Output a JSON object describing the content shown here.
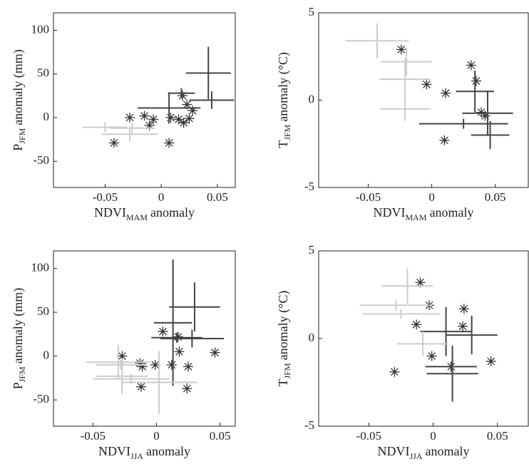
{
  "chart_data": [
    {
      "type": "scatter",
      "xlabel": {
        "main": "NDVI",
        "sub": "MAM",
        "rest": "anomaly"
      },
      "ylabel": {
        "main": "P",
        "sub": "JFM",
        "rest": "anomaly (mm)"
      },
      "xlim": [
        -0.096,
        0.066
      ],
      "ylim": [
        -80,
        120
      ],
      "xticks": [
        -0.05,
        0,
        0.05
      ],
      "yticks": [
        -50,
        0,
        50,
        100
      ],
      "series": [
        {
          "marker": "asterisk",
          "color": "#333333",
          "x": [
            -0.028,
            -0.015,
            -0.0105,
            -0.007,
            -0.042,
            0.007,
            0.0085,
            0.0155,
            0.02,
            0.025,
            0.028,
            0.019,
            0.023
          ],
          "y": [
            0,
            2,
            -9,
            -2,
            -29,
            -29,
            0,
            -2,
            -6,
            -1,
            8,
            25,
            15
          ]
        },
        {
          "marker": "errorbar",
          "color": "#444444",
          "x": [
            0.042,
            0.045,
            0.007,
            0.018
          ],
          "y": [
            51,
            20,
            11,
            28
          ],
          "xerr": [
            0.02,
            0.02,
            0.028,
            0.012
          ],
          "yerr": [
            30,
            10,
            18,
            0
          ]
        },
        {
          "marker": "errorbar",
          "color": "#cccccc",
          "x": [
            -0.05,
            -0.028,
            -0.026
          ],
          "y": [
            -11,
            -19,
            -12
          ],
          "xerr": [
            0.02,
            0.025,
            0.02
          ],
          "yerr": [
            0,
            8,
            5
          ]
        }
      ]
    },
    {
      "type": "scatter",
      "xlabel": {
        "main": "NDVI",
        "sub": "MAM",
        "rest": "anomaly"
      },
      "ylabel": {
        "main": "T",
        "sub": "JFM",
        "rest": "anomaly (°C)"
      },
      "xlim": [
        -0.089,
        0.076
      ],
      "ylim": [
        -5,
        5
      ],
      "xticks": [
        -0.05,
        0,
        0.05
      ],
      "yticks": [
        -5,
        0,
        5
      ],
      "series": [
        {
          "marker": "asterisk",
          "color": "#333333",
          "x": [
            -0.024,
            -0.004,
            0.011,
            0.01,
            0.031,
            0.035,
            0.039,
            0.042
          ],
          "y": [
            2.9,
            0.9,
            0.4,
            -2.3,
            2.0,
            1.1,
            -0.7,
            -0.9
          ]
        },
        {
          "marker": "errorbar",
          "color": "#444444",
          "x": [
            0.025,
            0.044,
            0.046,
            0.034
          ],
          "y": [
            -1.35,
            -0.75,
            -2.0,
            0.5
          ],
          "xerr": [
            0.035,
            0.02,
            0.015,
            0.015
          ],
          "yerr": [
            0,
            1.3,
            0.8,
            1.2
          ]
        },
        {
          "marker": "errorbar",
          "color": "#cccccc",
          "x": [
            -0.043,
            -0.02,
            -0.021,
            -0.021
          ],
          "y": [
            3.4,
            2.2,
            1.2,
            -0.5
          ],
          "xerr": [
            0.025,
            0.02,
            0.02,
            0.02
          ],
          "yerr": [
            1,
            0.8,
            1.2,
            0.7
          ]
        }
      ]
    },
    {
      "type": "scatter",
      "xlabel": {
        "main": "NDVI",
        "sub": "JJA",
        "rest": "anomaly"
      },
      "ylabel": {
        "main": "P",
        "sub": "JFM",
        "rest": "anomaly (mm)"
      },
      "xlim": [
        -0.081,
        0.062
      ],
      "ylim": [
        -80,
        120
      ],
      "xticks": [
        -0.05,
        0,
        0.05
      ],
      "yticks": [
        -50,
        0,
        50,
        100
      ],
      "series": [
        {
          "marker": "asterisk",
          "color": "#333333",
          "x": [
            -0.027,
            -0.013,
            -0.012,
            -0.011,
            -0.001,
            0.005,
            0.012,
            0.018,
            0.025,
            0.024,
            0.046,
            0.017
          ],
          "y": [
            0,
            -8,
            -35,
            -12,
            -10,
            28,
            -10,
            5,
            -12,
            -37,
            4,
            22
          ]
        },
        {
          "marker": "errorbar",
          "color": "#444444",
          "x": [
            0.013,
            0.016,
            0.03,
            0.028
          ],
          "y": [
            38,
            21,
            56,
            20
          ],
          "xerr": [
            0.015,
            0.02,
            0.02,
            0.025
          ],
          "yerr": [
            72,
            0,
            28,
            10
          ]
        },
        {
          "marker": "errorbar",
          "color": "#cccccc",
          "x": [
            -0.03,
            -0.027,
            -0.02,
            0.002,
            -0.028
          ],
          "y": [
            -7,
            -23,
            -26,
            -30,
            -10
          ],
          "xerr": [
            0.025,
            0.02,
            0.03,
            0.03,
            0.02
          ],
          "yerr": [
            20,
            20,
            0,
            36,
            0
          ]
        }
      ]
    },
    {
      "type": "scatter",
      "xlabel": {
        "main": "NDVI",
        "sub": "JJA",
        "rest": "anomaly"
      },
      "ylabel": {
        "main": "T",
        "sub": "JFM",
        "rest": "anomaly (°C)"
      },
      "xlim": [
        -0.089,
        0.074
      ],
      "ylim": [
        -5,
        5
      ],
      "xticks": [
        -0.05,
        0,
        0.05
      ],
      "yticks": [
        -5,
        0,
        5
      ],
      "series": [
        {
          "marker": "asterisk",
          "color": "#333333",
          "x": [
            -0.01,
            -0.003,
            -0.013,
            -0.001,
            0.024,
            0.023,
            0.045,
            -0.03,
            0.014
          ],
          "y": [
            3.2,
            1.9,
            0.8,
            -1.0,
            1.7,
            0.7,
            -1.3,
            -1.9,
            -1.6
          ]
        },
        {
          "marker": "errorbar",
          "color": "#444444",
          "x": [
            0.01,
            0.03,
            0.014,
            0.015
          ],
          "y": [
            0.4,
            0.2,
            -1.6,
            -2.0
          ],
          "xerr": [
            0.02,
            0.02,
            0.02,
            0.02
          ],
          "yerr": [
            1.4,
            1.1,
            0,
            1.6
          ]
        },
        {
          "marker": "errorbar",
          "color": "#cccccc",
          "x": [
            -0.02,
            -0.029,
            -0.025,
            -0.008
          ],
          "y": [
            3.0,
            1.9,
            1.4,
            -0.3
          ],
          "xerr": [
            0.02,
            0.028,
            0.03,
            0.02
          ],
          "yerr": [
            1.0,
            0,
            0,
            0.7
          ]
        }
      ]
    }
  ]
}
